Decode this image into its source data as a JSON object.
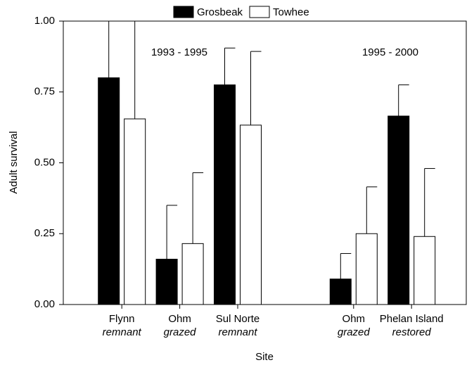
{
  "chart_data": {
    "type": "bar",
    "annotations": [
      "1993 - 1995",
      "1995 - 2000"
    ],
    "xlabel": "Site",
    "ylabel": "Adult survival",
    "categories": [
      "Flynn",
      "Ohm",
      "Sul Norte",
      null,
      "Ohm",
      "Phelan Island"
    ],
    "category_sublabels": [
      "remnant",
      "grazed",
      "remnant",
      null,
      "grazed",
      "restored"
    ],
    "series": [
      {
        "name": "Grosbeak",
        "color": "#000000",
        "values": [
          0.8,
          0.16,
          0.775,
          null,
          0.09,
          0.665
        ],
        "errors": [
          0.2,
          0.19,
          0.13,
          null,
          0.09,
          0.11
        ]
      },
      {
        "name": "Towhee",
        "color": "#ffffff",
        "values": [
          0.655,
          0.215,
          0.633,
          null,
          0.25,
          0.24
        ],
        "errors": [
          0.35,
          0.25,
          0.26,
          null,
          0.165,
          0.24
        ]
      }
    ],
    "ylim": [
      0,
      1
    ],
    "yticks": [
      {
        "value": 0,
        "label": "0.00"
      },
      {
        "value": 0.25,
        "label": "0.25"
      },
      {
        "value": 0.5,
        "label": "0.50"
      },
      {
        "value": 0.75,
        "label": "0.75"
      },
      {
        "value": 1,
        "label": "1.00"
      }
    ],
    "legend": "top"
  }
}
